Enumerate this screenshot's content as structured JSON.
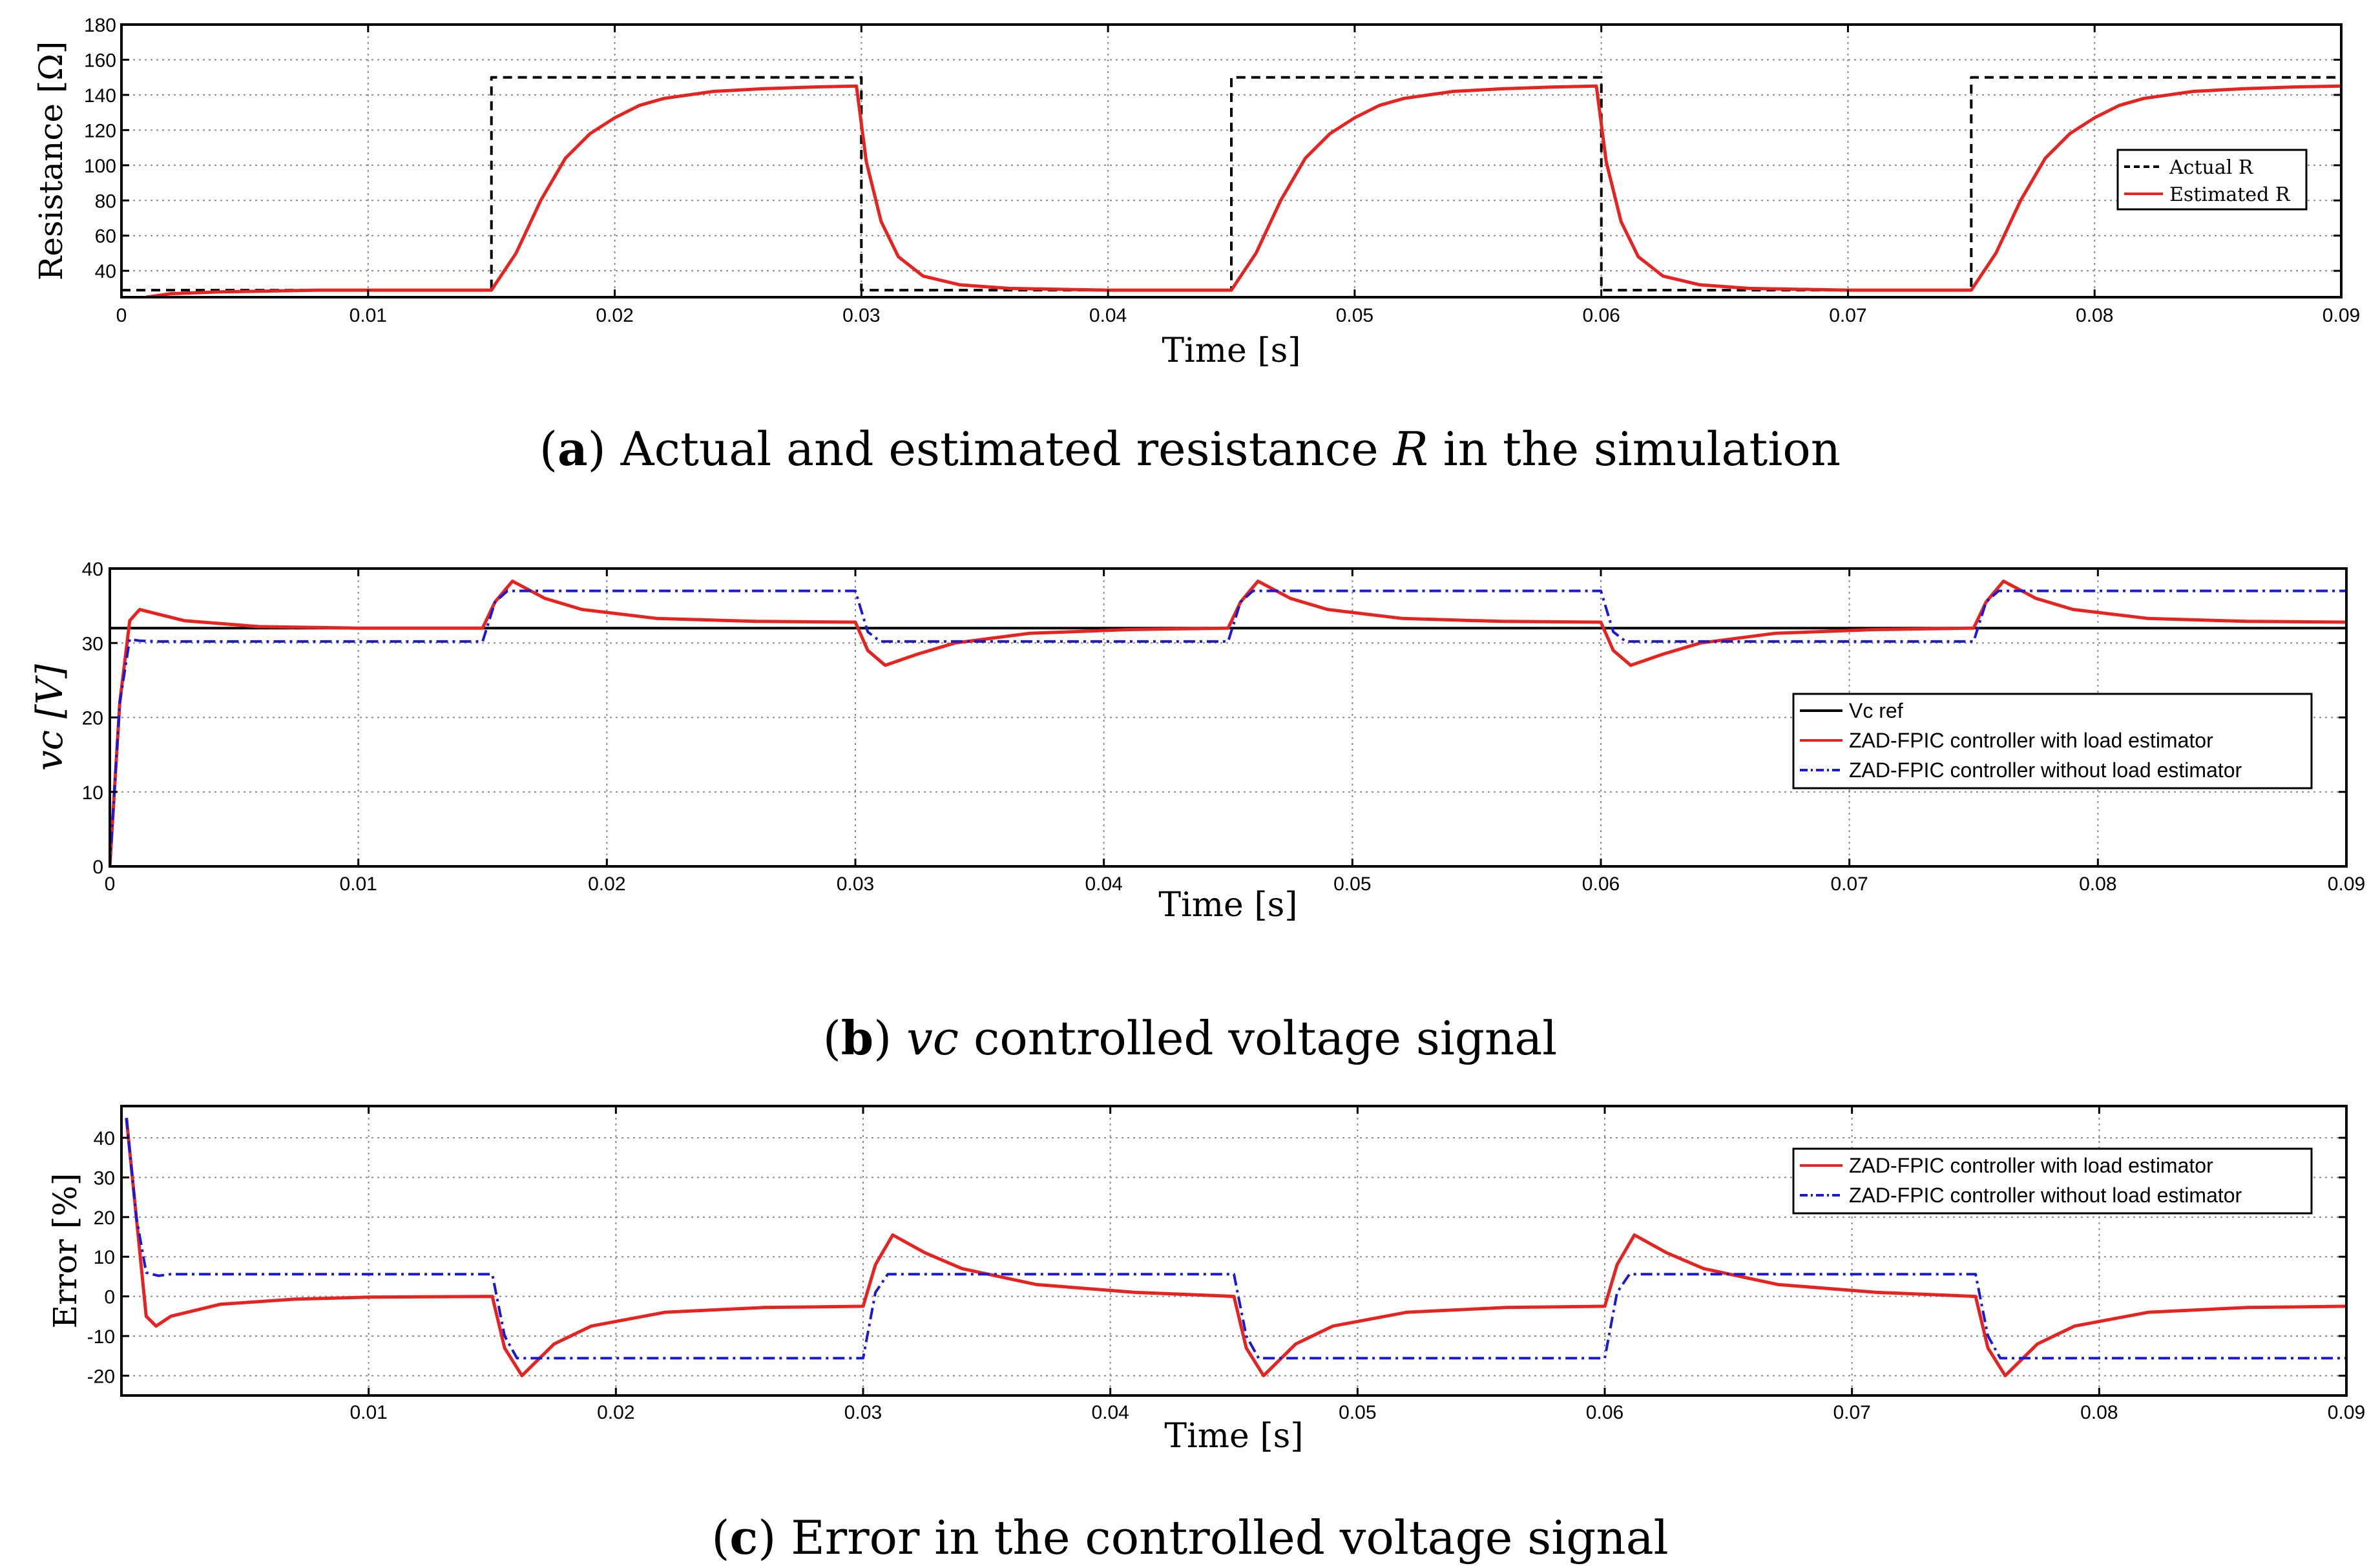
{
  "figure": {
    "captions": [
      {
        "label": "a",
        "pre": "Actual and estimated resistance ",
        "sym": "R",
        "post": " in the simulation"
      },
      {
        "label": "b",
        "pre": "",
        "sym": "vc",
        "post": " controlled voltage signal"
      },
      {
        "label": "c",
        "pre": "Error in the controlled voltage signal",
        "sym": "",
        "post": ""
      }
    ]
  },
  "colors": {
    "red": "#e8221f",
    "blue": "#1a1ad6",
    "black": "#000000",
    "grid": "#8a8a8a"
  },
  "chart_data": [
    {
      "id": "a",
      "type": "line",
      "title": "",
      "xlabel": "Time [s]",
      "ylabel": "Resistance [Ω]",
      "xlim": [
        0,
        0.09
      ],
      "ylim": [
        25,
        180
      ],
      "xticks": [
        0,
        0.01,
        0.02,
        0.03,
        0.04,
        0.05,
        0.06,
        0.07,
        0.08,
        0.09
      ],
      "xtick_labels": [
        "0",
        "0.01",
        "0.02",
        "0.03",
        "0.04",
        "0.05",
        "0.06",
        "0.07",
        "0.08",
        "0.09"
      ],
      "yticks": [
        40,
        60,
        80,
        100,
        120,
        140,
        160,
        180
      ],
      "ytick_labels": [
        "40",
        "60",
        "80",
        "100",
        "120",
        "140",
        "160",
        "180"
      ],
      "grid": true,
      "legend": {
        "position": "right",
        "entries": [
          "Actual R",
          "Estimated R"
        ]
      },
      "series": [
        {
          "name": "Actual R",
          "style": "dashed",
          "color": "black",
          "x": [
            0,
            0.015,
            0.015,
            0.03,
            0.03,
            0.045,
            0.045,
            0.06,
            0.06,
            0.075,
            0.075,
            0.09
          ],
          "y": [
            29,
            29,
            150,
            150,
            29,
            29,
            150,
            150,
            29,
            29,
            150,
            150
          ]
        },
        {
          "name": "Estimated R",
          "style": "solid",
          "color": "red",
          "x": [
            0.001,
            0.002,
            0.004,
            0.008,
            0.015,
            0.016,
            0.017,
            0.018,
            0.019,
            0.02,
            0.021,
            0.022,
            0.024,
            0.026,
            0.028,
            0.0298,
            0.0302,
            0.0308,
            0.0315,
            0.0325,
            0.034,
            0.036,
            0.04,
            0.045,
            0.046,
            0.047,
            0.048,
            0.049,
            0.05,
            0.051,
            0.052,
            0.054,
            0.056,
            0.058,
            0.0598,
            0.0602,
            0.0608,
            0.0615,
            0.0625,
            0.064,
            0.066,
            0.07,
            0.075,
            0.076,
            0.077,
            0.078,
            0.079,
            0.08,
            0.081,
            0.082,
            0.084,
            0.086,
            0.088,
            0.09
          ],
          "y": [
            25,
            27,
            28,
            29,
            29,
            50,
            80,
            104,
            118,
            127,
            134,
            138,
            142,
            143.5,
            144.5,
            145,
            102,
            68,
            48,
            37,
            32,
            30,
            29,
            29,
            50,
            80,
            104,
            118,
            127,
            134,
            138,
            142,
            143.5,
            144.5,
            145,
            102,
            68,
            48,
            37,
            32,
            30,
            29,
            29,
            50,
            80,
            104,
            118,
            127,
            134,
            138,
            142,
            143.5,
            144.5,
            145
          ]
        }
      ]
    },
    {
      "id": "b",
      "type": "line",
      "title": "",
      "xlabel": "Time [s]",
      "ylabel": "vc [V]",
      "xlim": [
        0,
        0.09
      ],
      "ylim": [
        0,
        40
      ],
      "xticks": [
        0,
        0.01,
        0.02,
        0.03,
        0.04,
        0.05,
        0.06,
        0.07,
        0.08,
        0.09
      ],
      "xtick_labels": [
        "0",
        "0.01",
        "0.02",
        "0.03",
        "0.04",
        "0.05",
        "0.06",
        "0.07",
        "0.08",
        "0.09"
      ],
      "yticks": [
        0,
        10,
        20,
        30,
        40
      ],
      "ytick_labels": [
        "0",
        "10",
        "20",
        "30",
        "40"
      ],
      "grid": true,
      "legend": {
        "position": "lower-right",
        "entries": [
          "Vc ref",
          "ZAD-FPIC controller with load estimator",
          "ZAD-FPIC controller without load estimator"
        ]
      },
      "series": [
        {
          "name": "Vc ref",
          "style": "solid",
          "color": "black",
          "x": [
            0,
            0.09
          ],
          "y": [
            32,
            32
          ]
        },
        {
          "name": "ZAD-FPIC controller with load estimator",
          "style": "solid",
          "color": "red",
          "x": [
            0,
            0.0004,
            0.0008,
            0.0012,
            0.0018,
            0.003,
            0.006,
            0.01,
            0.015,
            0.0155,
            0.0162,
            0.0175,
            0.019,
            0.022,
            0.026,
            0.03,
            0.0305,
            0.0312,
            0.0325,
            0.034,
            0.037,
            0.041,
            0.045,
            0.0455,
            0.0462,
            0.0475,
            0.049,
            0.052,
            0.056,
            0.06,
            0.0605,
            0.0612,
            0.0625,
            0.064,
            0.067,
            0.071,
            0.075,
            0.0755,
            0.0762,
            0.0775,
            0.079,
            0.082,
            0.086,
            0.09
          ],
          "y": [
            0,
            22,
            33,
            34.5,
            34,
            33,
            32.2,
            32,
            32,
            35.5,
            38.3,
            36,
            34.5,
            33.3,
            32.9,
            32.8,
            29,
            27,
            28.5,
            30,
            31.3,
            31.8,
            32,
            35.5,
            38.3,
            36,
            34.5,
            33.3,
            32.9,
            32.8,
            29,
            27,
            28.5,
            30,
            31.3,
            31.8,
            32,
            35.5,
            38.3,
            36,
            34.5,
            33.3,
            32.9,
            32.8
          ]
        },
        {
          "name": "ZAD-FPIC controller without load estimator",
          "style": "dashdot",
          "color": "blue",
          "x": [
            0,
            0.0004,
            0.0008,
            0.0012,
            0.002,
            0.015,
            0.0155,
            0.016,
            0.03,
            0.0305,
            0.031,
            0.045,
            0.0455,
            0.046,
            0.06,
            0.0605,
            0.061,
            0.075,
            0.0755,
            0.076,
            0.09
          ],
          "y": [
            0,
            22,
            30.5,
            30.3,
            30.2,
            30.2,
            35.5,
            37,
            37,
            31.5,
            30.2,
            30.2,
            35.5,
            37,
            37,
            31.5,
            30.2,
            30.2,
            35.5,
            37,
            37
          ]
        }
      ]
    },
    {
      "id": "c",
      "type": "line",
      "title": "",
      "xlabel": "Time [s]",
      "ylabel": "Error [%]",
      "xlim": [
        0,
        0.09
      ],
      "ylim": [
        -25,
        48
      ],
      "xticks": [
        0.01,
        0.02,
        0.03,
        0.04,
        0.05,
        0.06,
        0.07,
        0.08,
        0.09
      ],
      "xtick_labels": [
        "0.01",
        "0.02",
        "0.03",
        "0.04",
        "0.05",
        "0.06",
        "0.07",
        "0.08",
        "0.09"
      ],
      "yticks": [
        -20,
        -10,
        0,
        10,
        20,
        30,
        40
      ],
      "ytick_labels": [
        "-20",
        "-10",
        "0",
        "10",
        "20",
        "30",
        "40"
      ],
      "grid": true,
      "legend": {
        "position": "top-right",
        "entries": [
          "ZAD-FPIC controller with load estimator",
          "ZAD-FPIC controller without load estimator"
        ]
      },
      "series": [
        {
          "name": "ZAD-FPIC controller with load estimator",
          "style": "solid",
          "color": "red",
          "x": [
            0.0002,
            0.0006,
            0.001,
            0.0014,
            0.002,
            0.004,
            0.007,
            0.01,
            0.015,
            0.0155,
            0.0162,
            0.0175,
            0.019,
            0.022,
            0.026,
            0.03,
            0.0305,
            0.0312,
            0.0325,
            0.034,
            0.037,
            0.041,
            0.045,
            0.0455,
            0.0462,
            0.0475,
            0.049,
            0.052,
            0.056,
            0.06,
            0.0605,
            0.0612,
            0.0625,
            0.064,
            0.067,
            0.071,
            0.075,
            0.0755,
            0.0762,
            0.0775,
            0.079,
            0.082,
            0.086,
            0.09
          ],
          "y": [
            45,
            20,
            -5,
            -7.5,
            -5,
            -2,
            -0.7,
            -0.2,
            0,
            -13,
            -20,
            -12,
            -7.5,
            -4,
            -2.8,
            -2.5,
            8,
            15.5,
            11,
            7,
            3,
            1,
            0,
            -13,
            -20,
            -12,
            -7.5,
            -4,
            -2.8,
            -2.5,
            8,
            15.5,
            11,
            7,
            3,
            1,
            0,
            -13,
            -20,
            -12,
            -7.5,
            -4,
            -2.8,
            -2.5
          ]
        },
        {
          "name": "ZAD-FPIC controller without load estimator",
          "style": "dashdot",
          "color": "blue",
          "x": [
            0.0002,
            0.0006,
            0.001,
            0.0015,
            0.002,
            0.015,
            0.0155,
            0.016,
            0.03,
            0.0305,
            0.031,
            0.045,
            0.0455,
            0.046,
            0.06,
            0.0605,
            0.061,
            0.075,
            0.0755,
            0.076,
            0.09
          ],
          "y": [
            45,
            20,
            6,
            5.2,
            5.6,
            5.6,
            -10,
            -15.6,
            -15.6,
            1,
            5.6,
            5.6,
            -10,
            -15.6,
            -15.6,
            1,
            5.6,
            5.6,
            -10,
            -15.6,
            -15.6
          ]
        }
      ]
    }
  ]
}
